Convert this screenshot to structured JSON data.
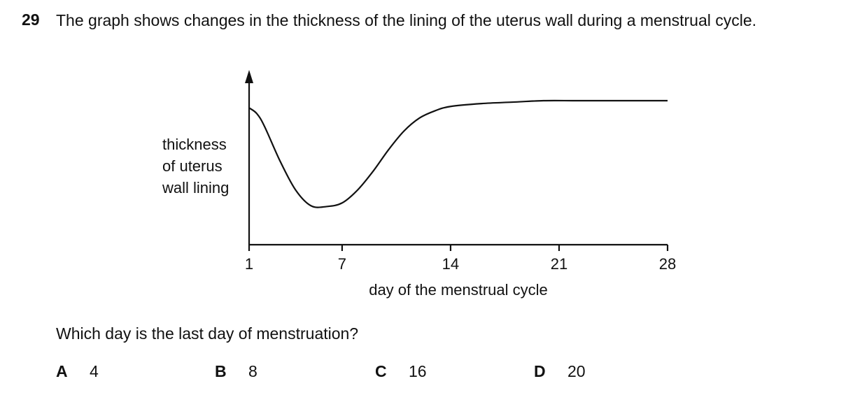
{
  "question": {
    "number": "29",
    "text": "The graph shows changes in the thickness of the lining of the uterus wall during a menstrual cycle.",
    "prompt": "Which day is the last day of menstruation?"
  },
  "chart_data": {
    "type": "line",
    "xlabel": "day of the menstrual cycle",
    "ylabel_lines": [
      "thickness",
      "of uterus",
      "wall lining"
    ],
    "x_ticks": [
      "1",
      "7",
      "14",
      "21",
      "28"
    ],
    "xlim": [
      1,
      28
    ],
    "y_axis_values_shown": false,
    "grid": false,
    "series": [
      {
        "x": [
          1,
          1.5,
          2,
          3,
          4,
          5,
          6,
          7,
          8,
          9,
          10,
          11,
          12,
          13,
          14,
          16,
          18,
          20,
          22,
          24,
          26,
          28
        ],
        "y": [
          0.95,
          0.91,
          0.82,
          0.58,
          0.38,
          0.27,
          0.265,
          0.29,
          0.38,
          0.51,
          0.66,
          0.79,
          0.88,
          0.93,
          0.96,
          0.98,
          0.99,
          1.0,
          1.0,
          1.0,
          1.0,
          1.0
        ]
      }
    ]
  },
  "options": [
    {
      "letter": "A",
      "value": "4"
    },
    {
      "letter": "B",
      "value": "8"
    },
    {
      "letter": "C",
      "value": "16"
    },
    {
      "letter": "D",
      "value": "20"
    }
  ]
}
